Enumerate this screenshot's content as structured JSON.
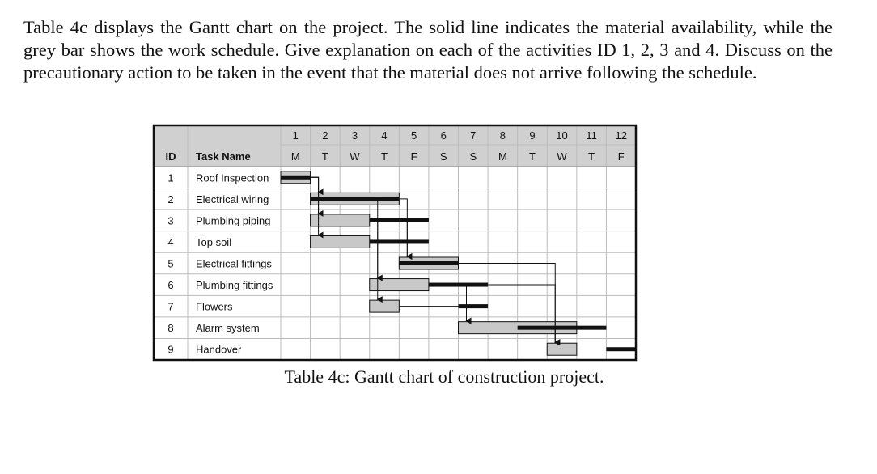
{
  "question": {
    "text": "Table 4c displays the Gantt chart on the project. The solid line indicates the material availability, while the grey bar shows the work schedule. Give explanation on each of the activities ID 1, 2, 3 and 4. Discuss on the precautionary action to be taken in the event that the material does not arrive following the schedule."
  },
  "caption": "Table 4c: Gantt chart of construction project.",
  "gantt": {
    "header": {
      "id_label": "ID",
      "task_label": "Task Name"
    },
    "day_numbers": [
      "1",
      "2",
      "3",
      "4",
      "5",
      "6",
      "7",
      "8",
      "9",
      "10",
      "11",
      "12"
    ],
    "day_letters": [
      "M",
      "T",
      "W",
      "T",
      "F",
      "S",
      "S",
      "M",
      "T",
      "W",
      "T",
      "F"
    ],
    "tasks": [
      {
        "id": "1",
        "name": "Roof Inspection",
        "work": [
          0,
          1
        ],
        "material": [
          0,
          1
        ]
      },
      {
        "id": "2",
        "name": "Electrical wiring",
        "work": [
          1,
          4
        ],
        "material": [
          1,
          4
        ]
      },
      {
        "id": "3",
        "name": "Plumbing piping",
        "work": [
          1,
          3
        ],
        "material": [
          3,
          5
        ]
      },
      {
        "id": "4",
        "name": "Top soil",
        "work": [
          1,
          3
        ],
        "material": [
          3,
          5
        ]
      },
      {
        "id": "5",
        "name": "Electrical fittings",
        "work": [
          4,
          6
        ],
        "material": [
          4,
          6
        ]
      },
      {
        "id": "6",
        "name": "Plumbing fittings",
        "work": [
          3,
          5
        ],
        "material": [
          5,
          7
        ]
      },
      {
        "id": "7",
        "name": "Flowers",
        "work": [
          3,
          4
        ],
        "material": [
          6,
          7
        ]
      },
      {
        "id": "8",
        "name": "Alarm system",
        "work": [
          6,
          10
        ],
        "material": [
          8,
          11
        ]
      },
      {
        "id": "9",
        "name": "Handover",
        "work": [
          9,
          10
        ],
        "material": [
          11,
          12
        ]
      }
    ],
    "colors": {
      "work_bar": "#c8c8c8",
      "material_line": "#111111",
      "header_fill": "#d0d0d0",
      "grid": "#bbbbbb"
    }
  }
}
